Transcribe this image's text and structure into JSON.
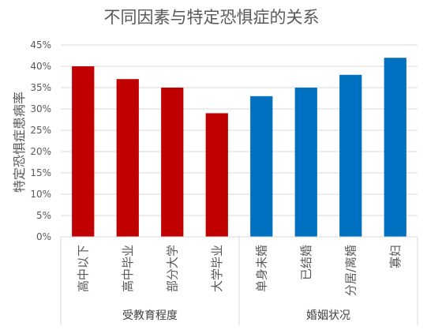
{
  "chart_data": {
    "type": "bar",
    "title": "不同因素与特定恐惧症的关系",
    "ylabel": "特定恐惧症患病率",
    "xlabel": "",
    "ylim": [
      0,
      45
    ],
    "y_ticks": [
      "0%",
      "5%",
      "10%",
      "15%",
      "20%",
      "25%",
      "30%",
      "35%",
      "40%",
      "45%"
    ],
    "grid": true,
    "legend": "none",
    "groups": [
      {
        "name": "受教育程度",
        "color": "#C00000",
        "categories": [
          "高中以下",
          "高中毕业",
          "部分大学",
          "大学毕业"
        ],
        "values": [
          40,
          37,
          35,
          29
        ]
      },
      {
        "name": "婚姻状况",
        "color": "#0070C0",
        "categories": [
          "单身未婚",
          "已结婚",
          "分居/离婚",
          "寡妇"
        ],
        "values": [
          33,
          35,
          38,
          42
        ]
      }
    ]
  }
}
